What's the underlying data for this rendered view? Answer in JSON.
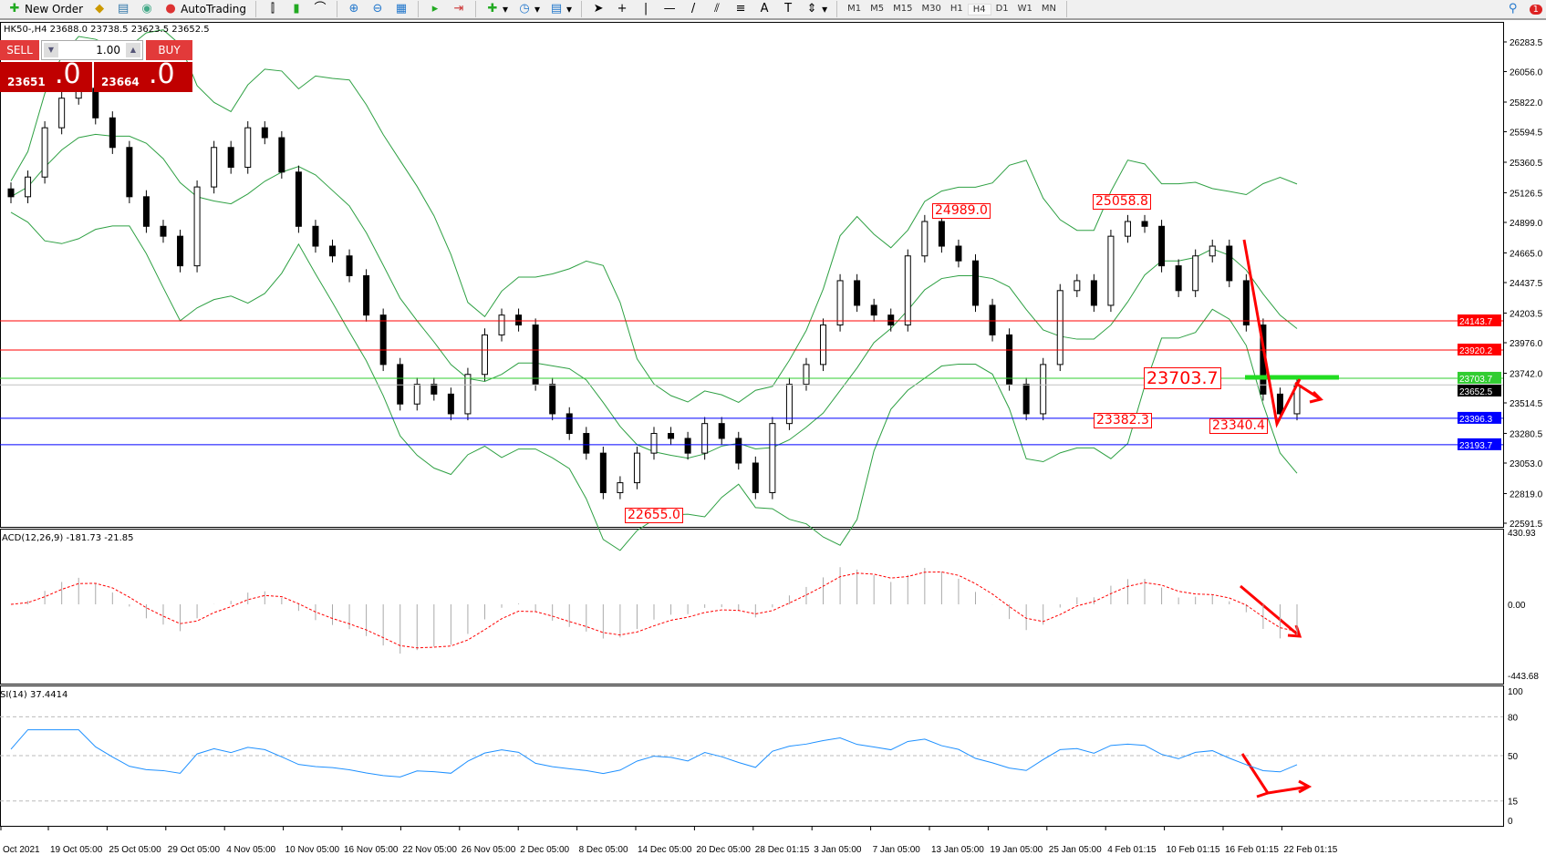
{
  "toolbar": {
    "new_order": "New Order",
    "autotrading": "AutoTrading",
    "timeframes": [
      "M1",
      "M5",
      "M15",
      "M30",
      "H1",
      "H4",
      "D1",
      "W1",
      "MN"
    ],
    "active_timeframe": "H4",
    "notification_count": "1"
  },
  "symbol_line": "HK50-,H4  23688.0 23738.5 23623.5 23652.5",
  "trade_panel": {
    "sell": "SELL",
    "buy": "BUY",
    "lot": "1.00",
    "sell_small": "23651",
    "sell_large": ".0",
    "buy_small": "23664",
    "buy_large": ".0"
  },
  "colors": {
    "bull": "#ffffff",
    "bear": "#000000",
    "bands": "#2ea043",
    "macd_signal": "#ff0000",
    "rsi": "#1e90ff",
    "annot": "#ff0000"
  },
  "chart_data": {
    "type": "candlestick",
    "close": [
      25096,
      25247,
      25625,
      25852,
      25928,
      25701,
      25474,
      25096,
      24869,
      24793,
      24566,
      25171,
      25474,
      25322,
      25625,
      25549,
      25285,
      24869,
      24717,
      24642,
      24490,
      24188,
      23809,
      23506,
      23658,
      23582,
      23431,
      23733,
      24036,
      24188,
      24112,
      23658,
      23431,
      23280,
      23129,
      22826,
      22902,
      23129,
      23280,
      23242,
      23129,
      23356,
      23242,
      23053,
      22826,
      23356,
      23658,
      23809,
      24112,
      24452,
      24263,
      24188,
      24112,
      24642,
      24906,
      24717,
      24604,
      24263,
      24036,
      23658,
      23431,
      23809,
      24376,
      24452,
      24263,
      24793,
      24906,
      24869,
      24566,
      24376,
      24642,
      24717,
      24452,
      24112,
      23582,
      23431,
      23652.5
    ],
    "price_ticks": [
      "26283.5",
      "26056.0",
      "25822.0",
      "25594.5",
      "25360.5",
      "25126.5",
      "24899.0",
      "24665.0",
      "24437.5",
      "24203.5",
      "23976.0",
      "23742.0",
      "23514.5",
      "23280.5",
      "23053.0",
      "22819.0",
      "22591.5"
    ],
    "price_tick_values": [
      26283.5,
      26056.0,
      25822.0,
      25594.5,
      25360.5,
      25126.5,
      24899.0,
      24665.0,
      24437.5,
      24203.5,
      23976.0,
      23742.0,
      23514.5,
      23280.5,
      23053.0,
      22819.0,
      22591.5
    ],
    "ylim": [
      22591.5,
      26283.5
    ],
    "hlines": [
      {
        "value": 24143.7,
        "label": "24143.7",
        "color": "#ff0000"
      },
      {
        "value": 23920.2,
        "label": "23920.2",
        "color": "#ff0000"
      },
      {
        "value": 23703.7,
        "label": "23703.7",
        "color": "#32cd32"
      },
      {
        "value": 23652.5,
        "label": "23652.5",
        "color": "#000000"
      },
      {
        "value": 23396.3,
        "label": "23396.3",
        "color": "#0000ff"
      },
      {
        "value": 23193.7,
        "label": "23193.7",
        "color": "#0000ff"
      }
    ],
    "annotations": [
      "24989.0",
      "25058.8",
      "23703.7",
      "23382.3",
      "23340.4",
      "22655.0"
    ],
    "time_labels": [
      "Oct 2021",
      "19 Oct 05:00",
      "25 Oct 05:00",
      "29 Oct 05:00",
      "4 Nov 05:00",
      "10 Nov 05:00",
      "16 Nov 05:00",
      "22 Nov 05:00",
      "26 Nov 05:00",
      "2 Dec 05:00",
      "8 Dec 05:00",
      "14 Dec 05:00",
      "20 Dec 05:00",
      "28 Dec 01:15",
      "3 Jan 05:00",
      "7 Jan 05:00",
      "13 Jan 05:00",
      "19 Jan 05:00",
      "25 Jan 05:00",
      "4 Feb 01:15",
      "10 Feb 01:15",
      "16 Feb 01:15",
      "22 Feb 01:15"
    ],
    "macd": {
      "label": "ACD(12,26,9) -181.73 -21.85",
      "ticks": [
        "430.93",
        "0.00",
        "-443.68"
      ]
    },
    "rsi": {
      "label": "SI(14) 37.4414",
      "ticks": [
        "100",
        "80",
        "50",
        "15",
        "0"
      ],
      "levels": [
        80,
        50,
        15
      ]
    }
  }
}
